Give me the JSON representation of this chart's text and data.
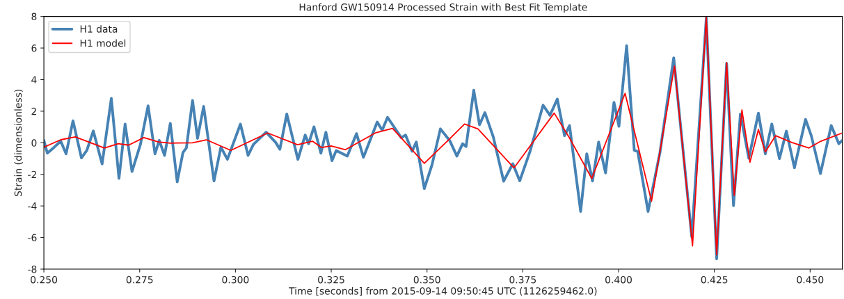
{
  "chart_data": {
    "type": "line",
    "title": "Hanford GW150914 Processed Strain with Best Fit Template",
    "xlabel": "Time [seconds] from 2015-09-14 09:50:45 UTC (1126259462.0)",
    "ylabel": "Strain (dimensionless)",
    "xlim": [
      0.25,
      0.4584
    ],
    "ylim": [
      -8,
      8
    ],
    "xticks": [
      {
        "value": 0.25,
        "label": "0.250"
      },
      {
        "value": 0.275,
        "label": "0.275"
      },
      {
        "value": 0.3,
        "label": "0.300"
      },
      {
        "value": 0.325,
        "label": "0.325"
      },
      {
        "value": 0.35,
        "label": "0.350"
      },
      {
        "value": 0.375,
        "label": "0.375"
      },
      {
        "value": 0.4,
        "label": "0.400"
      },
      {
        "value": 0.425,
        "label": "0.425"
      },
      {
        "value": 0.45,
        "label": "0.450"
      }
    ],
    "yticks": [
      -8,
      -6,
      -4,
      -2,
      0,
      2,
      4,
      6,
      8
    ],
    "grid": false,
    "legend": "top left",
    "line_style": "solid",
    "marker": "none",
    "series": [
      {
        "name": "H1 data",
        "color": "#4682b4",
        "x": [
          0.25,
          0.2509,
          0.2527,
          0.2544,
          0.2558,
          0.2576,
          0.2598,
          0.2612,
          0.2629,
          0.2652,
          0.2676,
          0.2696,
          0.2712,
          0.273,
          0.2752,
          0.2772,
          0.279,
          0.2801,
          0.2815,
          0.283,
          0.2848,
          0.2863,
          0.2872,
          0.2888,
          0.2901,
          0.2917,
          0.2944,
          0.2962,
          0.2979,
          0.3013,
          0.3033,
          0.3047,
          0.308,
          0.3105,
          0.3116,
          0.3134,
          0.3163,
          0.3182,
          0.3191,
          0.3205,
          0.3223,
          0.3236,
          0.3252,
          0.3263,
          0.3292,
          0.3316,
          0.3334,
          0.337,
          0.3383,
          0.3397,
          0.3433,
          0.3444,
          0.3461,
          0.3472,
          0.3493,
          0.3513,
          0.3535,
          0.3559,
          0.3578,
          0.3593,
          0.3602,
          0.3622,
          0.3637,
          0.3651,
          0.3673,
          0.37,
          0.3724,
          0.3742,
          0.3769,
          0.3803,
          0.3821,
          0.384,
          0.3859,
          0.3872,
          0.3901,
          0.3917,
          0.3932,
          0.3948,
          0.3966,
          0.3988,
          0.4001,
          0.4021,
          0.4041,
          0.405,
          0.4077,
          0.4108,
          0.4144,
          0.4191,
          0.4229,
          0.4256,
          0.4282,
          0.43,
          0.4318,
          0.434,
          0.4365,
          0.4383,
          0.44,
          0.442,
          0.4438,
          0.4459,
          0.4488,
          0.4503,
          0.4527,
          0.4555,
          0.4575,
          0.4584
        ],
        "values": [
          0.15,
          -0.66,
          -0.28,
          0.1,
          -0.7,
          1.39,
          -0.96,
          -0.49,
          0.75,
          -1.34,
          2.81,
          -2.26,
          1.18,
          -1.82,
          -0.1,
          2.34,
          -0.7,
          0.15,
          -0.8,
          1.23,
          -2.48,
          -0.62,
          -0.32,
          2.68,
          0.28,
          2.3,
          -2.42,
          -0.28,
          -1.05,
          1.18,
          -0.8,
          -0.1,
          0.67,
          0.02,
          -0.41,
          1.82,
          -1.05,
          0.49,
          -0.06,
          1.01,
          -0.66,
          0.67,
          -1.13,
          -0.49,
          -0.84,
          0.58,
          -0.92,
          1.31,
          0.8,
          1.61,
          0.32,
          0.49,
          -0.54,
          0.05,
          -2.9,
          -1.4,
          0.88,
          0.15,
          -0.84,
          -0.06,
          -0.24,
          3.33,
          1.14,
          1.91,
          0.37,
          -2.43,
          -1.33,
          -2.41,
          -0.54,
          2.38,
          1.74,
          2.77,
          0.45,
          1.09,
          -4.35,
          -0.7,
          -2.42,
          0.05,
          -1.91,
          2.56,
          1.05,
          6.15,
          -0.48,
          -0.55,
          -4.35,
          -0.62,
          5.38,
          -5.95,
          7.9,
          -7.35,
          5.03,
          -3.98,
          1.82,
          -0.98,
          1.88,
          -0.7,
          1.19,
          -1.0,
          0.74,
          -1.58,
          1.48,
          0.45,
          -1.95,
          1.09,
          -0.06,
          0.15
        ]
      },
      {
        "name": "H1 model",
        "color": "#ff0000",
        "x": [
          0.25,
          0.2544,
          0.2582,
          0.2658,
          0.2694,
          0.2721,
          0.2761,
          0.2799,
          0.283,
          0.2888,
          0.2924,
          0.2988,
          0.3084,
          0.3162,
          0.3201,
          0.3225,
          0.325,
          0.3287,
          0.3365,
          0.341,
          0.3493,
          0.3555,
          0.3598,
          0.3633,
          0.3727,
          0.3832,
          0.3872,
          0.393,
          0.4017,
          0.4086,
          0.4146,
          0.4193,
          0.4229,
          0.4256,
          0.4282,
          0.4302,
          0.4322,
          0.4343,
          0.4365,
          0.4383,
          0.441,
          0.4452,
          0.4497,
          0.4528,
          0.4584
        ],
        "values": [
          -0.28,
          0.19,
          0.37,
          -0.33,
          -0.06,
          -0.15,
          0.33,
          0.05,
          -0.02,
          0.0,
          0.19,
          -0.48,
          0.62,
          -0.12,
          0.1,
          -0.3,
          -0.2,
          -0.44,
          0.62,
          0.91,
          -1.3,
          0.15,
          1.19,
          0.88,
          -1.59,
          1.88,
          0.3,
          -2.26,
          3.13,
          -3.7,
          4.86,
          -6.53,
          7.95,
          -7.1,
          5.08,
          -3.33,
          2.08,
          -1.23,
          0.84,
          -0.58,
          0.45,
          0.02,
          -0.33,
          0.1,
          0.62
        ]
      }
    ]
  }
}
